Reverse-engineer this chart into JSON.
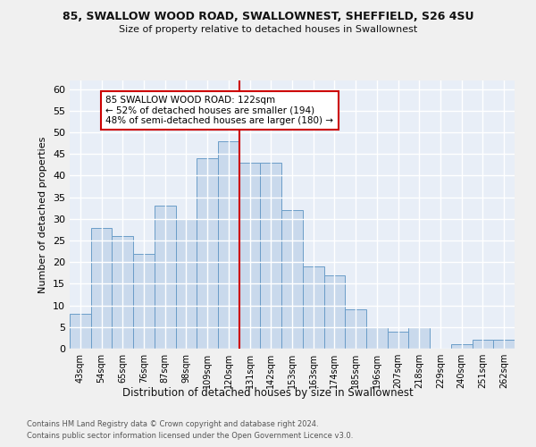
{
  "title_line1": "85, SWALLOW WOOD ROAD, SWALLOWNEST, SHEFFIELD, S26 4SU",
  "title_line2": "Size of property relative to detached houses in Swallownest",
  "xlabel": "Distribution of detached houses by size in Swallownest",
  "ylabel": "Number of detached properties",
  "categories": [
    "43sqm",
    "54sqm",
    "65sqm",
    "76sqm",
    "87sqm",
    "98sqm",
    "109sqm",
    "120sqm",
    "131sqm",
    "142sqm",
    "153sqm",
    "163sqm",
    "174sqm",
    "185sqm",
    "196sqm",
    "207sqm",
    "218sqm",
    "229sqm",
    "240sqm",
    "251sqm",
    "262sqm"
  ],
  "values": [
    8,
    28,
    26,
    22,
    33,
    30,
    44,
    48,
    43,
    43,
    32,
    19,
    17,
    9,
    5,
    4,
    5,
    0,
    1,
    2,
    2
  ],
  "bar_color": "#c9d9ec",
  "bar_edge_color": "#6b9dc8",
  "vline_x": 7.5,
  "vline_color": "#cc0000",
  "annotation_text": "85 SWALLOW WOOD ROAD: 122sqm\n← 52% of detached houses are smaller (194)\n48% of semi-detached houses are larger (180) →",
  "annotation_box_color": "#ffffff",
  "annotation_box_edge_color": "#cc0000",
  "ylim": [
    0,
    62
  ],
  "yticks": [
    0,
    5,
    10,
    15,
    20,
    25,
    30,
    35,
    40,
    45,
    50,
    55,
    60
  ],
  "background_color": "#e8eef7",
  "grid_color": "#ffffff",
  "fig_background": "#f0f0f0",
  "footer_line1": "Contains HM Land Registry data © Crown copyright and database right 2024.",
  "footer_line2": "Contains public sector information licensed under the Open Government Licence v3.0."
}
